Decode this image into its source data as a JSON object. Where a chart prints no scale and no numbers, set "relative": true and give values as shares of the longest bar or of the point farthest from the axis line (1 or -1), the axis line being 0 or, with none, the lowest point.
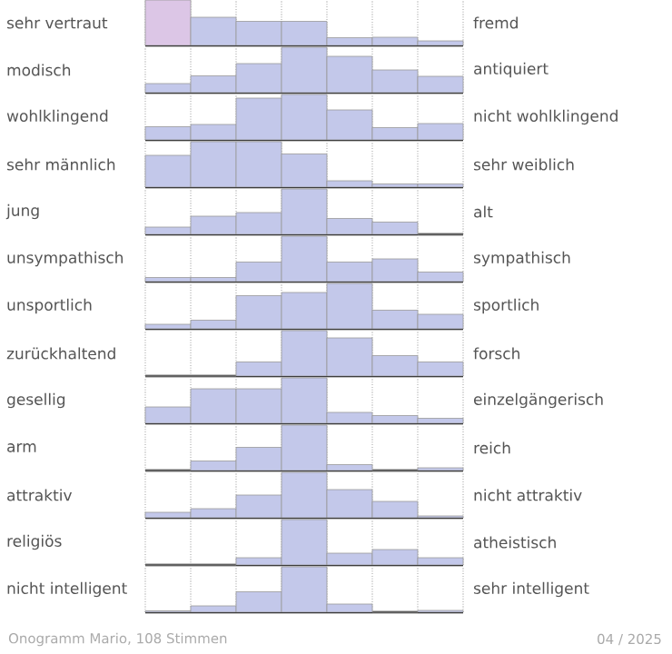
{
  "chart_data": [
    {
      "type": "bar",
      "ylabel": "sehr vertraut",
      "y2label": "fremd",
      "categories": [
        null,
        null,
        null,
        null,
        null,
        null,
        null
      ],
      "values": [
        1,
        0.62,
        0.53,
        0.53,
        0.17,
        0.18,
        0.1
      ],
      "colors": [
        "#dcc6e6",
        "#c3c8ea",
        "#c3c8ea",
        "#c3c8ea",
        "#c3c8ea",
        "#c3c8ea",
        "#c3c8ea"
      ],
      "relative": true,
      "grid": "x"
    },
    {
      "type": "bar",
      "ylabel": "modisch",
      "y2label": "antiquiert",
      "categories": [
        null,
        null,
        null,
        null,
        null,
        null,
        null
      ],
      "values": [
        0.2,
        0.37,
        0.64,
        1,
        0.8,
        0.5,
        0.36
      ],
      "color": "#c3c8ea",
      "relative": true,
      "grid": "x"
    },
    {
      "type": "bar",
      "ylabel": "wohlklingend",
      "y2label": "nicht wohlklingend",
      "categories": [
        null,
        null,
        null,
        null,
        null,
        null,
        null
      ],
      "values": [
        0.29,
        0.34,
        0.92,
        1,
        0.66,
        0.27,
        0.36
      ],
      "color": "#c3c8ea",
      "relative": true,
      "grid": "x"
    },
    {
      "type": "bar",
      "ylabel": "sehr männlich",
      "y2label": "sehr weiblich",
      "categories": [
        null,
        null,
        null,
        null,
        null,
        null,
        null
      ],
      "values": [
        0.7,
        1,
        1,
        0.73,
        0.14,
        0.07,
        0.07
      ],
      "color": "#c3c8ea",
      "relative": true,
      "grid": "x"
    },
    {
      "type": "bar",
      "ylabel": "jung",
      "y2label": "alt",
      "categories": [
        null,
        null,
        null,
        null,
        null,
        null,
        null
      ],
      "values": [
        0.16,
        0.4,
        0.48,
        1,
        0.35,
        0.27,
        0
      ],
      "color": "#c3c8ea",
      "relative": true,
      "grid": "x"
    },
    {
      "type": "bar",
      "ylabel": "unsympathisch",
      "y2label": "sympathisch",
      "categories": [
        null,
        null,
        null,
        null,
        null,
        null,
        null
      ],
      "values": [
        0.09,
        0.09,
        0.43,
        1,
        0.43,
        0.5,
        0.21
      ],
      "color": "#c3c8ea",
      "relative": true,
      "grid": "x"
    },
    {
      "type": "bar",
      "ylabel": "unsportlich",
      "y2label": "sportlich",
      "categories": [
        null,
        null,
        null,
        null,
        null,
        null,
        null
      ],
      "values": [
        0.1,
        0.19,
        0.73,
        0.8,
        1,
        0.41,
        0.32
      ],
      "color": "#c3c8ea",
      "relative": true,
      "grid": "x"
    },
    {
      "type": "bar",
      "ylabel": "zurückhaltend",
      "y2label": "forsch",
      "categories": [
        null,
        null,
        null,
        null,
        null,
        null,
        null
      ],
      "values": [
        0,
        0,
        0.31,
        1,
        0.84,
        0.45,
        0.31
      ],
      "color": "#c3c8ea",
      "relative": true,
      "grid": "x"
    },
    {
      "type": "bar",
      "ylabel": "gesellig",
      "y2label": "einzelgängerisch",
      "categories": [
        null,
        null,
        null,
        null,
        null,
        null,
        null
      ],
      "values": [
        0.36,
        0.76,
        0.76,
        1,
        0.24,
        0.17,
        0.11
      ],
      "color": "#c3c8ea",
      "relative": true,
      "grid": "x"
    },
    {
      "type": "bar",
      "ylabel": "arm",
      "y2label": "reich",
      "categories": [
        null,
        null,
        null,
        null,
        null,
        null,
        null
      ],
      "values": [
        0,
        0.21,
        0.51,
        1,
        0.13,
        0,
        0.06
      ],
      "color": "#c3c8ea",
      "relative": true,
      "grid": "x"
    },
    {
      "type": "bar",
      "ylabel": "attraktiv",
      "y2label": "nicht attraktiv",
      "categories": [
        null,
        null,
        null,
        null,
        null,
        null,
        null
      ],
      "values": [
        0.12,
        0.2,
        0.5,
        1,
        0.62,
        0.36,
        0.04
      ],
      "color": "#c3c8ea",
      "relative": true,
      "grid": "x"
    },
    {
      "type": "bar",
      "ylabel": "religiös",
      "y2label": "atheistisch",
      "categories": [
        null,
        null,
        null,
        null,
        null,
        null,
        null
      ],
      "values": [
        0,
        0,
        0.16,
        1,
        0.26,
        0.34,
        0.16
      ],
      "color": "#c3c8ea",
      "relative": true,
      "grid": "x"
    },
    {
      "type": "bar",
      "ylabel": "nicht intelligent",
      "y2label": "sehr intelligent",
      "categories": [
        null,
        null,
        null,
        null,
        null,
        null,
        null
      ],
      "values": [
        0.03,
        0.14,
        0.45,
        1,
        0.18,
        0,
        0.04
      ],
      "color": "#c3c8ea",
      "relative": true,
      "grid": "x",
      "annotations": [
        "Onogramm Mario, 108 Stimmen",
        "04 / 2025"
      ]
    }
  ]
}
